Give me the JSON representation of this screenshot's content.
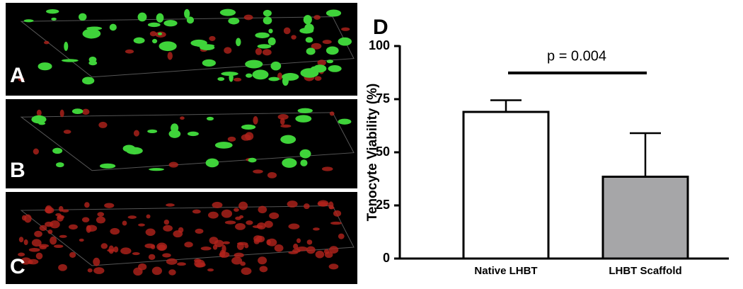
{
  "panels": [
    {
      "label": "A"
    },
    {
      "label": "B"
    },
    {
      "label": "C"
    }
  ],
  "chart_data": {
    "type": "bar",
    "panel_label": "D",
    "ylabel": "Tenocyte Viability (%)",
    "categories": [
      "Native LHBT",
      "LHBT Scaffold"
    ],
    "values": [
      69,
      38.5
    ],
    "errors": [
      5.5,
      20.5
    ],
    "colors": [
      "#ffffff",
      "#a6a6a8"
    ],
    "ylim": [
      0,
      100
    ],
    "yticks": [
      0,
      25,
      50,
      75,
      100
    ],
    "annotation": "p = 0.004"
  }
}
